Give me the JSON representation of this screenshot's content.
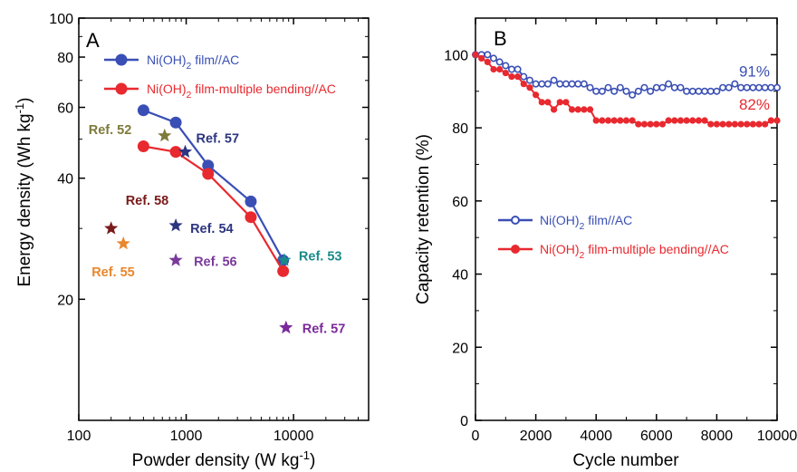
{
  "chart_data": [
    {
      "panel_label": "A",
      "type": "line",
      "xlabel_main": "Powder density (W kg",
      "xlabel_sup": "-1",
      "xlabel_close": ")",
      "ylabel_main": "Energy density (Wh kg",
      "ylabel_sup": "-1",
      "ylabel_close": ")",
      "xscale": "log",
      "yscale": "log",
      "xlim": [
        100,
        50000
      ],
      "ylim": [
        10,
        100
      ],
      "xticks": [
        100,
        1000,
        10000
      ],
      "xtick_labels": [
        "100",
        "1000",
        "10000"
      ],
      "yticks": [
        20,
        40,
        60,
        80,
        100
      ],
      "ytick_labels": [
        "20",
        "40",
        "60",
        "80",
        "100"
      ],
      "legend_position": "top-left",
      "series": [
        {
          "label_pre": "Ni(OH)",
          "label_sub": "2",
          "label_post": " film//AC",
          "color": "#3a4fb5",
          "x": [
            400,
            800,
            1600,
            4000,
            8000
          ],
          "y": [
            59,
            55,
            43,
            35,
            25
          ]
        },
        {
          "label_pre": "Ni(OH)",
          "label_sub": "2",
          "label_post": " film-multiple bending//AC",
          "color": "#e8292f",
          "x": [
            400,
            800,
            1600,
            4000,
            8000
          ],
          "y": [
            48,
            46.5,
            41,
            32,
            23.5
          ]
        }
      ],
      "references": [
        {
          "label": "Ref. 52",
          "x": 630,
          "y": 51,
          "color": "#7d7a3a",
          "label_color": "#7d7a3a"
        },
        {
          "label": "Ref. 57",
          "x": 980,
          "y": 46.5,
          "color": "#2d3580",
          "label_color": "#2d3580"
        },
        {
          "label": "Ref. 58",
          "x": 200,
          "y": 30,
          "color": "#7a1a1a",
          "label_color": "#7a1a1a"
        },
        {
          "label": "Ref. 54",
          "x": 800,
          "y": 30.5,
          "color": "#2d3580",
          "label_color": "#2d3580"
        },
        {
          "label": "Ref. 55",
          "x": 260,
          "y": 27.5,
          "color": "#e8872c",
          "label_color": "#e8872c"
        },
        {
          "label": "Ref. 56",
          "x": 800,
          "y": 25,
          "color": "#7a3a9a",
          "label_color": "#7a3a9a"
        },
        {
          "label": "Ref. 53",
          "x": 8200,
          "y": 25,
          "color": "#1a8a8a",
          "label_color": "#1a8a8a"
        },
        {
          "label": "Ref. 57",
          "x": 8500,
          "y": 17,
          "color": "#7a2a9a",
          "label_color": "#7a2a9a"
        }
      ]
    },
    {
      "panel_label": "B",
      "type": "line",
      "xlabel": "Cycle number",
      "ylabel": "Capacity retention (%)",
      "xlim": [
        0,
        10000
      ],
      "ylim": [
        0,
        110
      ],
      "xticks": [
        0,
        2000,
        4000,
        6000,
        8000,
        10000
      ],
      "xtick_labels": [
        "0",
        "2000",
        "4000",
        "6000",
        "8000",
        "10000"
      ],
      "yticks": [
        0,
        20,
        40,
        60,
        80,
        100
      ],
      "ytick_labels": [
        "0",
        "20",
        "40",
        "60",
        "80",
        "100"
      ],
      "legend_position": "center-left",
      "series": [
        {
          "label_pre": "Ni(OH)",
          "label_sub": "2",
          "label_post": " film//AC",
          "color": "#3a4fb5",
          "end_label": "91%",
          "x": [
            0,
            200,
            400,
            600,
            800,
            1000,
            1200,
            1400,
            1600,
            1800,
            2000,
            2200,
            2400,
            2600,
            2800,
            3000,
            3200,
            3400,
            3600,
            3800,
            4000,
            4200,
            4400,
            4600,
            4800,
            5000,
            5200,
            5400,
            5600,
            5800,
            6000,
            6200,
            6400,
            6600,
            6800,
            7000,
            7200,
            7400,
            7600,
            7800,
            8000,
            8200,
            8400,
            8600,
            8800,
            9000,
            9200,
            9400,
            9600,
            9800,
            10000
          ],
          "y": [
            100,
            100,
            100,
            99,
            98,
            97,
            96,
            96,
            94,
            93,
            92,
            92,
            92,
            93,
            92,
            92,
            92,
            92,
            92,
            91,
            90,
            90,
            91,
            90,
            91,
            90,
            89,
            90,
            91,
            90,
            91,
            91,
            92,
            91,
            91,
            90,
            90,
            90,
            90,
            90,
            90,
            91,
            91,
            92,
            91,
            91,
            91,
            91,
            91,
            91,
            91
          ]
        },
        {
          "label_pre": "Ni(OH)",
          "label_sub": "2",
          "label_post": " film-multiple bending//AC",
          "color": "#e8292f",
          "end_label": "82%",
          "x": [
            0,
            200,
            400,
            600,
            800,
            1000,
            1200,
            1400,
            1600,
            1800,
            2000,
            2200,
            2400,
            2600,
            2800,
            3000,
            3200,
            3400,
            3600,
            3800,
            4000,
            4200,
            4400,
            4600,
            4800,
            5000,
            5200,
            5400,
            5600,
            5800,
            6000,
            6200,
            6400,
            6600,
            6800,
            7000,
            7200,
            7400,
            7600,
            7800,
            8000,
            8200,
            8400,
            8600,
            8800,
            9000,
            9200,
            9400,
            9600,
            9800,
            10000
          ],
          "y": [
            100,
            99,
            98,
            96,
            96,
            95,
            94,
            94,
            92,
            91,
            89,
            87,
            87,
            85,
            87,
            87,
            85,
            85,
            85,
            85,
            82,
            82,
            82,
            82,
            82,
            82,
            82,
            81,
            81,
            81,
            81,
            81,
            82,
            82,
            82,
            82,
            82,
            82,
            82,
            81,
            81,
            81,
            81,
            81,
            81,
            81,
            81,
            81,
            81,
            82,
            82
          ]
        }
      ]
    }
  ]
}
